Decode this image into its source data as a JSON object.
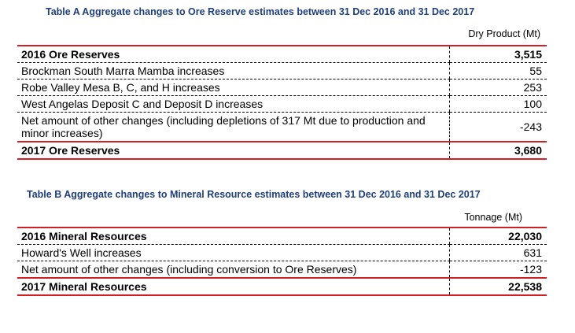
{
  "table_a": {
    "title": "Table A Aggregate changes to Ore Reserve estimates between 31 Dec 2016 and 31 Dec 2017",
    "column_header": "Dry Product (Mt)",
    "rows": [
      {
        "label": "2016 Ore Reserves",
        "value": "3,515"
      },
      {
        "label": "Brockman  South Marra Mamba increases",
        "value": "55"
      },
      {
        "label": "Robe Valley Mesa B, C, and H increases",
        "value": "253"
      },
      {
        "label": "West Angelas Deposit C and Deposit D increases",
        "value": "100"
      },
      {
        "label": "Net amount of other changes (including depletions of 317 Mt due to production and minor increases)",
        "value": "-243"
      },
      {
        "label": "2017 Ore Reserves",
        "value": "3,680"
      }
    ]
  },
  "table_b": {
    "title": "Table B Aggregate changes to Mineral Resource estimates between 31 Dec 2016 and 31 Dec 2017",
    "column_header": "Tonnage (Mt)",
    "rows": [
      {
        "label": "2016 Mineral Resources",
        "value": "22,030"
      },
      {
        "label": "Howard's Well increases",
        "value": "631"
      },
      {
        "label": "Net amount of other changes (including conversion to Ore Reserves)",
        "value": "-123"
      },
      {
        "label": "2017 Mineral Resources",
        "value": "22,538"
      }
    ]
  }
}
